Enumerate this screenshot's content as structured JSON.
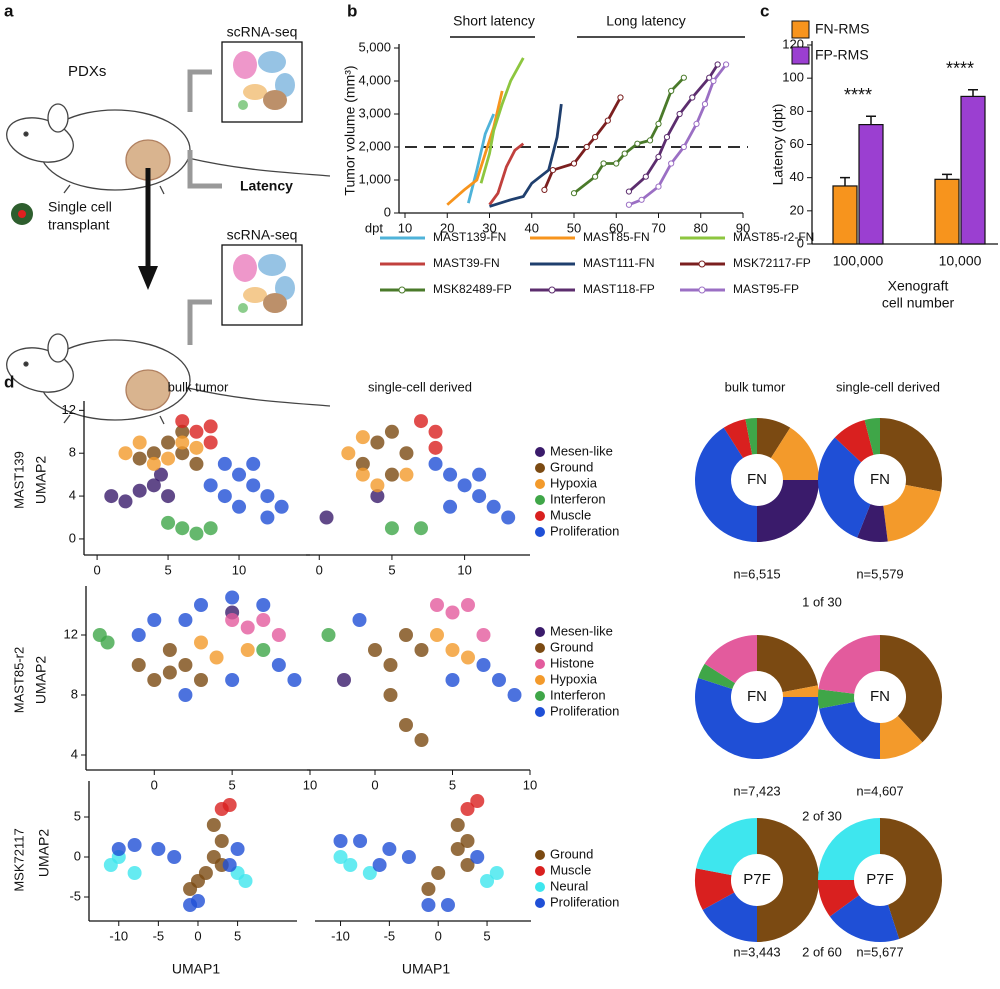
{
  "panel_a": {
    "label": "a",
    "pdx": "PDXs",
    "scrna_top": "scRNA-seq",
    "latency": "Latency",
    "transplant": [
      "Single cell",
      "transplant"
    ],
    "scrna_bottom": "scRNA-seq"
  },
  "panel_d": {
    "label": "d",
    "bulk_heading": "bulk tumor",
    "single_heading": "single-cell derived",
    "pie_bulk_heading": "bulk tumor",
    "pie_single_heading": "single-cell derived",
    "rows": [
      {
        "name": "MAST139",
        "ratio": "1 of 30"
      },
      {
        "name": "MAST85-r2",
        "ratio": "2 of 30"
      },
      {
        "name": "MSK72117",
        "ratio": "2 of 60"
      }
    ]
  },
  "chart_data": [
    {
      "panel": "b",
      "type": "line",
      "ylabel": "Tumor volume (mm³)",
      "xlabel": "dpt",
      "annotations": [
        "Short latency",
        "Long latency"
      ],
      "xlim": [
        10,
        90
      ],
      "xticks": [
        10,
        20,
        30,
        40,
        50,
        60,
        70,
        80,
        90
      ],
      "ylim": [
        0,
        5000
      ],
      "yticks": [
        0,
        {
          "value": 1000,
          "label": "1,000"
        },
        {
          "value": 2000,
          "label": "2,000"
        },
        {
          "value": 3000,
          "label": "3,000"
        },
        {
          "value": 4000,
          "label": "4,000"
        },
        {
          "value": 5000,
          "label": "5,000"
        }
      ],
      "reference_line": 2000,
      "series": [
        {
          "name": "MAST139-FN",
          "color": "#4fb3d9",
          "marker": false,
          "x": [
            25,
            27,
            29,
            31
          ],
          "values": [
            300,
            1300,
            2400,
            3000
          ]
        },
        {
          "name": "MAST85-FN",
          "color": "#f7941d",
          "marker": false,
          "x": [
            20,
            24,
            27,
            29,
            31,
            33
          ],
          "values": [
            250,
            700,
            1000,
            1800,
            2600,
            3700
          ]
        },
        {
          "name": "MAST85-r2-FN",
          "color": "#8dc63f",
          "marker": false,
          "x": [
            28,
            30,
            31,
            33,
            35,
            38
          ],
          "values": [
            900,
            1800,
            2500,
            3300,
            4000,
            4700
          ]
        },
        {
          "name": "MAST39-FN",
          "color": "#c1403d",
          "marker": false,
          "x": [
            30,
            32,
            34,
            36,
            38
          ],
          "values": [
            250,
            600,
            1400,
            1900,
            2100
          ]
        },
        {
          "name": "MAST111-FN",
          "color": "#1f3f6e",
          "marker": false,
          "x": [
            30,
            35,
            38,
            40,
            42,
            44,
            46,
            47
          ],
          "values": [
            200,
            400,
            500,
            900,
            1100,
            1300,
            2300,
            3300
          ]
        },
        {
          "name": "MSK72117-FP",
          "color": "#7b1f1f",
          "marker": true,
          "x": [
            43,
            45,
            50,
            53,
            55,
            58,
            61
          ],
          "values": [
            700,
            1300,
            1500,
            2000,
            2300,
            2800,
            3500
          ]
        },
        {
          "name": "MSK82489-FP",
          "color": "#4a7a2a",
          "marker": true,
          "x": [
            50,
            55,
            57,
            60,
            62,
            65,
            68,
            70,
            73,
            76
          ],
          "values": [
            600,
            1100,
            1500,
            1500,
            1800,
            2100,
            2200,
            2700,
            3700,
            4100
          ]
        },
        {
          "name": "MAST118-FP",
          "color": "#5c2d6e",
          "marker": true,
          "x": [
            63,
            67,
            70,
            72,
            75,
            78,
            82,
            84
          ],
          "values": [
            650,
            1100,
            1700,
            2300,
            3000,
            3500,
            4100,
            4500
          ]
        },
        {
          "name": "MAST95-FP",
          "color": "#9b6fc4",
          "marker": true,
          "x": [
            63,
            66,
            70,
            73,
            76,
            79,
            81,
            83,
            86
          ],
          "values": [
            250,
            400,
            800,
            1500,
            2000,
            2700,
            3300,
            4000,
            4500
          ]
        }
      ]
    },
    {
      "panel": "c",
      "type": "bar",
      "ylabel": "Latency (dpt)",
      "xlabel": [
        "Xenograft",
        "cell number"
      ],
      "categories": [
        "100,000",
        "10,000"
      ],
      "ylim": [
        0,
        120
      ],
      "yticks": [
        0,
        20,
        40,
        60,
        80,
        100,
        120
      ],
      "annotations": [
        "****",
        "****"
      ],
      "series": [
        {
          "name": "FN-RMS",
          "color": "#f7941d",
          "values": [
            35,
            39
          ],
          "errors": [
            5,
            3
          ]
        },
        {
          "name": "FP-RMS",
          "color": "#9b3fd1",
          "values": [
            72,
            89
          ],
          "errors": [
            5,
            4
          ]
        }
      ]
    },
    {
      "type": "scatter",
      "ylabel": "UMAP2",
      "xlim": [
        -0.5,
        15
      ],
      "xticks": [
        0,
        5,
        10
      ],
      "ylim": [
        -1.5,
        12.5
      ],
      "yticks": [
        0,
        4,
        8,
        12
      ],
      "series": [
        {
          "name": "Mesen-like",
          "color": "#3a1b6b",
          "x": [
            1,
            2,
            3,
            4,
            5,
            4.5
          ],
          "y": [
            4,
            3.5,
            4.5,
            5,
            4,
            6
          ]
        },
        {
          "name": "Ground",
          "color": "#7b4a12",
          "x": [
            4,
            5,
            6,
            7,
            6,
            3
          ],
          "y": [
            8,
            9,
            8,
            7,
            10,
            7.5
          ]
        },
        {
          "name": "Hypoxia",
          "color": "#f39a2b",
          "x": [
            2,
            3,
            4,
            5,
            6,
            7
          ],
          "y": [
            8,
            9,
            7,
            7.5,
            9,
            8.5
          ]
        },
        {
          "name": "Interferon",
          "color": "#3fa648",
          "x": [
            6,
            7,
            8,
            5
          ],
          "y": [
            1,
            0.5,
            1,
            1.5
          ]
        },
        {
          "name": "Muscle",
          "color": "#d9201f",
          "x": [
            6,
            7,
            8,
            8
          ],
          "y": [
            11,
            10,
            10.5,
            9
          ]
        },
        {
          "name": "Proliferation",
          "color": "#1f4fd6",
          "x": [
            9,
            10,
            11,
            12,
            13,
            9,
            10,
            11,
            8,
            12
          ],
          "y": [
            7,
            6,
            5,
            4,
            3,
            4,
            3,
            7,
            5,
            2
          ]
        }
      ]
    },
    {
      "type": "scatter",
      "xlim": [
        -0.5,
        14.5
      ],
      "xticks": [
        0,
        5,
        10
      ],
      "ylim": [
        -1.5,
        12.5
      ],
      "series": [
        {
          "color": "#3a1b6b",
          "x": [
            0.5,
            4
          ],
          "y": [
            2,
            4
          ]
        },
        {
          "color": "#7b4a12",
          "x": [
            3,
            4,
            6,
            5,
            5
          ],
          "y": [
            7,
            9,
            8,
            6,
            10
          ]
        },
        {
          "color": "#f39a2b",
          "x": [
            2,
            3,
            4,
            3,
            6
          ],
          "y": [
            8,
            6,
            5,
            9.5,
            6
          ]
        },
        {
          "color": "#3fa648",
          "x": [
            5,
            7
          ],
          "y": [
            1,
            1
          ]
        },
        {
          "color": "#d9201f",
          "x": [
            7,
            8,
            8
          ],
          "y": [
            11,
            10,
            8.5
          ]
        },
        {
          "color": "#1f4fd6",
          "x": [
            9,
            10,
            11,
            12,
            9,
            8,
            11,
            13
          ],
          "y": [
            6,
            5,
            4,
            3,
            3,
            7,
            6,
            2
          ]
        }
      ]
    },
    {
      "type": "scatter",
      "ylabel": "UMAP2",
      "xlim": [
        -4,
        10
      ],
      "xticks": [
        0,
        5,
        10
      ],
      "ylim": [
        3,
        15
      ],
      "yticks": [
        4,
        8,
        12
      ],
      "series": [
        {
          "name": "Mesen-like",
          "color": "#3a1b6b",
          "x": [
            5
          ],
          "y": [
            13.5
          ]
        },
        {
          "name": "Ground",
          "color": "#7b4a12",
          "x": [
            -1,
            0,
            1,
            2,
            3,
            1
          ],
          "y": [
            10,
            9,
            9.5,
            10,
            9,
            11
          ]
        },
        {
          "name": "Histone",
          "color": "#e35b9d",
          "x": [
            5,
            6,
            7,
            8
          ],
          "y": [
            13,
            12.5,
            13,
            12
          ]
        },
        {
          "name": "Hypoxia",
          "color": "#f39a2b",
          "x": [
            3,
            4,
            6
          ],
          "y": [
            11.5,
            10.5,
            11
          ]
        },
        {
          "name": "Interferon",
          "color": "#3fa648",
          "x": [
            -3.5,
            -3,
            7
          ],
          "y": [
            12,
            11.5,
            11
          ]
        },
        {
          "name": "Proliferation",
          "color": "#1f4fd6",
          "x": [
            0,
            2,
            3,
            5,
            7,
            8,
            9,
            2,
            5,
            -1
          ],
          "y": [
            13,
            13,
            14,
            14.5,
            14,
            10,
            9,
            8,
            9,
            12
          ]
        }
      ]
    },
    {
      "type": "scatter",
      "xlim": [
        -4,
        10
      ],
      "xticks": [
        0,
        5,
        10
      ],
      "ylim": [
        3,
        15
      ],
      "series": [
        {
          "color": "#3a1b6b",
          "x": [
            -2
          ],
          "y": [
            9
          ]
        },
        {
          "color": "#7b4a12",
          "x": [
            0,
            1,
            2,
            3,
            1,
            2,
            3
          ],
          "y": [
            11,
            10,
            12,
            11,
            8,
            6,
            5
          ]
        },
        {
          "color": "#e35b9d",
          "x": [
            5,
            6,
            7,
            4
          ],
          "y": [
            13.5,
            14,
            12,
            14
          ]
        },
        {
          "color": "#f39a2b",
          "x": [
            4,
            5,
            6
          ],
          "y": [
            12,
            11,
            10.5
          ]
        },
        {
          "color": "#3fa648",
          "x": [
            -3
          ],
          "y": [
            12
          ]
        },
        {
          "color": "#1f4fd6",
          "x": [
            7,
            8,
            9,
            5,
            -1
          ],
          "y": [
            10,
            9,
            8,
            9,
            13
          ]
        }
      ]
    },
    {
      "type": "scatter",
      "ylabel": "UMAP2",
      "xlabel": "UMAP1",
      "xlim": [
        -13,
        12.5
      ],
      "xticks": [
        -10,
        -5,
        0,
        5
      ],
      "ylim": [
        -8,
        9
      ],
      "yticks": [
        -5,
        0,
        5
      ],
      "series": [
        {
          "name": "Ground",
          "color": "#7b4a12",
          "x": [
            2,
            3,
            2,
            1,
            0,
            3,
            -1
          ],
          "y": [
            4,
            2,
            0,
            -2,
            -3,
            -1,
            -4
          ]
        },
        {
          "name": "Muscle",
          "color": "#d9201f",
          "x": [
            3,
            4
          ],
          "y": [
            6,
            6.5
          ]
        },
        {
          "name": "Neural",
          "color": "#3ee6ee",
          "x": [
            -11,
            -10,
            -8,
            5,
            6
          ],
          "y": [
            -1,
            0,
            -2,
            -2,
            -3
          ]
        },
        {
          "name": "Proliferation",
          "color": "#1f4fd6",
          "x": [
            -10,
            -8,
            -5,
            -3,
            -1,
            0,
            4,
            5
          ],
          "y": [
            1,
            1.5,
            1,
            0,
            -6,
            -5.5,
            -1,
            1
          ]
        }
      ]
    },
    {
      "type": "scatter",
      "xlabel": "UMAP1",
      "xlim": [
        -12,
        9.5
      ],
      "xticks": [
        -10,
        -5,
        0,
        5
      ],
      "ylim": [
        -8,
        9
      ],
      "series": [
        {
          "color": "#7b4a12",
          "x": [
            2,
            3,
            2,
            0,
            -1,
            3
          ],
          "y": [
            4,
            2,
            1,
            -2,
            -4,
            -1
          ]
        },
        {
          "color": "#d9201f",
          "x": [
            3,
            4
          ],
          "y": [
            6,
            7
          ]
        },
        {
          "color": "#3ee6ee",
          "x": [
            -9,
            -10,
            -7,
            5,
            6
          ],
          "y": [
            -1,
            0,
            -2,
            -3,
            -2
          ]
        },
        {
          "color": "#1f4fd6",
          "x": [
            -10,
            -8,
            -5,
            -3,
            -1,
            1,
            4,
            -6
          ],
          "y": [
            2,
            2,
            1,
            0,
            -6,
            -6,
            0,
            -1
          ]
        }
      ]
    },
    {
      "type": "pie",
      "center_label": "FN",
      "n_label": "n=6,515",
      "values": [
        9,
        16,
        25,
        41,
        6,
        3
      ],
      "colors": [
        "#7b4a12",
        "#f39a2b",
        "#3a1b6b",
        "#1f4fd6",
        "#d9201f",
        "#3fa648"
      ]
    },
    {
      "type": "pie",
      "center_label": "FN",
      "n_label": "n=5,579",
      "values": [
        28,
        20,
        8,
        31,
        9,
        4
      ],
      "colors": [
        "#7b4a12",
        "#f39a2b",
        "#3a1b6b",
        "#1f4fd6",
        "#d9201f",
        "#3fa648"
      ]
    },
    {
      "type": "pie",
      "center_label": "FN",
      "n_label": "n=7,423",
      "values": [
        22,
        3,
        55,
        4,
        16
      ],
      "colors": [
        "#7b4a12",
        "#f39a2b",
        "#1f4fd6",
        "#3fa648",
        "#e35b9d"
      ]
    },
    {
      "type": "pie",
      "center_label": "FN",
      "n_label": "n=4,607",
      "values": [
        38,
        12,
        22,
        5,
        23
      ],
      "colors": [
        "#7b4a12",
        "#f39a2b",
        "#1f4fd6",
        "#3fa648",
        "#e35b9d"
      ]
    },
    {
      "type": "pie",
      "center_label": "P7F",
      "n_label": "n=3,443",
      "values": [
        50,
        17,
        11,
        22
      ],
      "colors": [
        "#7b4a12",
        "#1f4fd6",
        "#d9201f",
        "#3ee6ee"
      ]
    },
    {
      "type": "pie",
      "center_label": "P7F",
      "n_label": "n=5,677",
      "values": [
        45,
        20,
        10,
        25
      ],
      "colors": [
        "#7b4a12",
        "#1f4fd6",
        "#d9201f",
        "#3ee6ee"
      ]
    }
  ]
}
